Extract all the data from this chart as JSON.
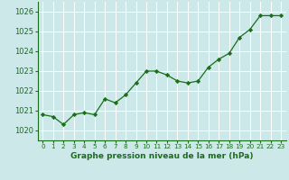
{
  "x": [
    0,
    1,
    2,
    3,
    4,
    5,
    6,
    7,
    8,
    9,
    10,
    11,
    12,
    13,
    14,
    15,
    16,
    17,
    18,
    19,
    20,
    21,
    22,
    23
  ],
  "y": [
    1020.8,
    1020.7,
    1020.3,
    1020.8,
    1020.9,
    1020.8,
    1021.6,
    1021.4,
    1021.8,
    1022.4,
    1023.0,
    1023.0,
    1022.8,
    1022.5,
    1022.4,
    1022.5,
    1023.2,
    1023.6,
    1023.9,
    1024.7,
    1025.1,
    1025.8,
    1025.8,
    1025.8
  ],
  "line_color": "#1a6e1a",
  "marker": "D",
  "marker_size": 2.2,
  "bg_color": "#cce8e8",
  "grid_color": "#ffffff",
  "xlabel": "Graphe pression niveau de la mer (hPa)",
  "xlabel_color": "#1a6e1a",
  "xlabel_fontsize": 6.5,
  "tick_color": "#1a6e1a",
  "ytick_fontsize": 6.0,
  "xtick_fontsize": 5.2,
  "ylim": [
    1019.5,
    1026.5
  ],
  "yticks": [
    1020,
    1021,
    1022,
    1023,
    1024,
    1025,
    1026
  ],
  "xtick_labels": [
    "0",
    "1",
    "2",
    "3",
    "4",
    "5",
    "6",
    "7",
    "8",
    "9",
    "10",
    "11",
    "12",
    "13",
    "14",
    "15",
    "16",
    "17",
    "18",
    "19",
    "20",
    "21",
    "22",
    "23"
  ]
}
